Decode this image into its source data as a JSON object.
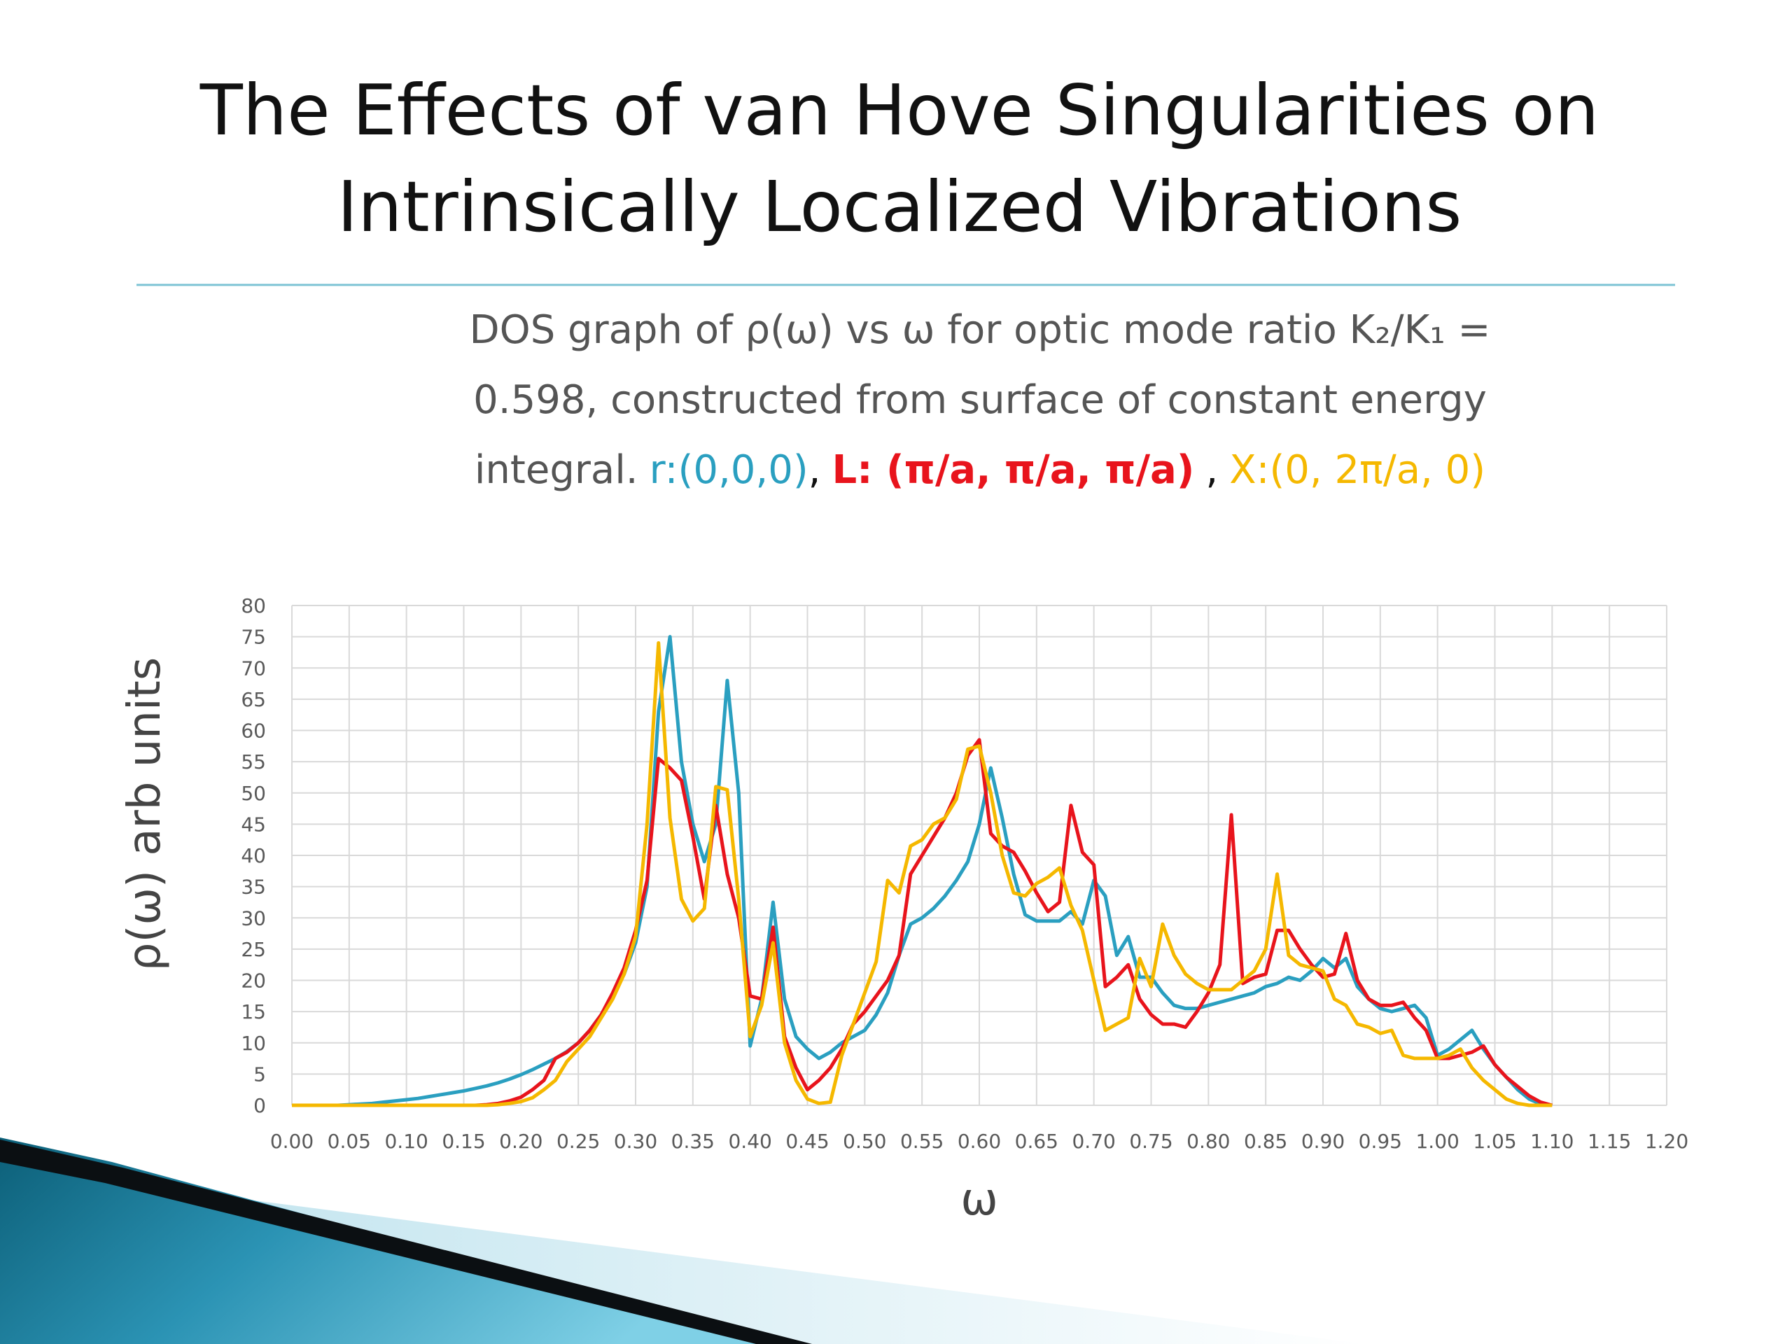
{
  "slide": {
    "title_lines": [
      "The Effects of van Hove Singularities on",
      "Intrinsically Localized Vibrations"
    ],
    "caption_lines": [
      "DOS graph of ρ(ω) vs ω for optic mode ratio K₂/K₁ =",
      "0.598, constructed from surface of constant energy",
      "integral."
    ],
    "separators": [
      ",",
      ","
    ]
  },
  "chart_data": {
    "type": "line",
    "x_label": "ω",
    "y_label": "ρ(ω) arb units",
    "x": [
      0,
      0.01,
      0.02,
      0.03,
      0.04,
      0.05,
      0.06,
      0.07,
      0.08,
      0.09,
      0.1,
      0.11,
      0.12,
      0.13,
      0.14,
      0.15,
      0.16,
      0.17,
      0.18,
      0.19,
      0.2,
      0.21,
      0.22,
      0.23,
      0.24,
      0.25,
      0.26,
      0.27,
      0.28,
      0.29,
      0.3,
      0.31,
      0.32,
      0.33,
      0.34,
      0.35,
      0.36,
      0.37,
      0.38,
      0.39,
      0.4,
      0.41,
      0.42,
      0.43,
      0.44,
      0.45,
      0.46,
      0.47,
      0.48,
      0.49,
      0.5,
      0.51,
      0.52,
      0.53,
      0.54,
      0.55,
      0.56,
      0.57,
      0.58,
      0.59,
      0.6,
      0.61,
      0.62,
      0.63,
      0.64,
      0.65,
      0.66,
      0.67,
      0.68,
      0.69,
      0.7,
      0.71,
      0.72,
      0.73,
      0.74,
      0.75,
      0.76,
      0.77,
      0.78,
      0.79,
      0.8,
      0.81,
      0.82,
      0.83,
      0.84,
      0.85,
      0.86,
      0.87,
      0.88,
      0.89,
      0.9,
      0.91,
      0.92,
      0.93,
      0.94,
      0.95,
      0.96,
      0.97,
      0.98,
      0.99,
      1,
      1.01,
      1.02,
      1.03,
      1.04,
      1.05,
      1.06,
      1.07,
      1.08,
      1.09,
      1.1
    ],
    "series": [
      {
        "name": "r:(0,0,0)",
        "color": "#2a9fc0",
        "bold": false,
        "values": [
          0,
          0,
          0,
          0,
          0,
          0.1,
          0.2,
          0.3,
          0.5,
          0.7,
          0.9,
          1.1,
          1.4,
          1.7,
          2,
          2.3,
          2.7,
          3.1,
          3.6,
          4.2,
          4.9,
          5.7,
          6.6,
          7.5,
          8.6,
          10,
          12,
          14.5,
          17.5,
          21,
          26,
          35,
          63,
          75,
          55,
          45,
          39,
          45,
          68,
          50,
          9.5,
          17,
          32.5,
          17,
          11,
          9,
          7.5,
          8.5,
          10,
          11,
          12,
          14.5,
          18,
          24,
          29,
          30,
          31.5,
          33.5,
          36,
          39,
          45,
          54,
          46,
          37,
          30.5,
          29.5,
          29.5,
          29.5,
          31,
          29,
          36,
          33.5,
          24,
          27,
          20.5,
          20.5,
          18,
          16,
          15.5,
          15.5,
          16,
          16.5,
          17,
          17.5,
          18,
          19,
          19.5,
          20.5,
          20,
          21.5,
          23.5,
          22,
          23.5,
          19,
          17,
          15.5,
          15,
          15.5,
          16,
          14,
          8,
          9,
          10.5,
          12,
          9,
          6.5,
          4.5,
          2.5,
          1,
          0.2,
          0
        ]
      },
      {
        "name": "L: (π/a, π/a, π/a)",
        "color": "#e8141c",
        "bold": true,
        "values": [
          0,
          0,
          0,
          0,
          0,
          0,
          0,
          0,
          0,
          0,
          0,
          0,
          0,
          0,
          0,
          0,
          0,
          0.1,
          0.3,
          0.7,
          1.3,
          2.5,
          4,
          7.5,
          8.5,
          10,
          12,
          14.5,
          18,
          22,
          28,
          36,
          55.5,
          54,
          52,
          43,
          33,
          48,
          37,
          30,
          17.5,
          17,
          28.5,
          11,
          6,
          2.5,
          4,
          6,
          9,
          13,
          15,
          17.5,
          20,
          24,
          37,
          40,
          43,
          46,
          50,
          56,
          58.5,
          43.5,
          41.5,
          40.5,
          37.5,
          34,
          31,
          32.5,
          48,
          40.5,
          38.5,
          19,
          20.5,
          22.5,
          17,
          14.5,
          13,
          13,
          12.5,
          15,
          18,
          22.5,
          46.5,
          19.5,
          20.5,
          21,
          28,
          28,
          25,
          22.5,
          20.5,
          21,
          27.5,
          20,
          17,
          16,
          16,
          16.5,
          14,
          12,
          7.5,
          7.5,
          8,
          8.5,
          9.5,
          6.5,
          4.5,
          3,
          1.5,
          0.5,
          0
        ]
      },
      {
        "name": "X:(0, 2π/a, 0)",
        "color": "#f5b800",
        "bold": false,
        "values": [
          0,
          0,
          0,
          0,
          0,
          0,
          0,
          0,
          0,
          0,
          0,
          0,
          0,
          0,
          0,
          0,
          0,
          0,
          0.1,
          0.3,
          0.6,
          1.2,
          2.5,
          4,
          7,
          9,
          11,
          14,
          17,
          21,
          27,
          45,
          74,
          46,
          33,
          29.5,
          31.5,
          51,
          50.5,
          33,
          11,
          16,
          26,
          10,
          4,
          1,
          0.3,
          0.5,
          8,
          13,
          18,
          23,
          36,
          34,
          41.5,
          42.5,
          45,
          46,
          49,
          57,
          57.5,
          50,
          40,
          34,
          33.5,
          35.5,
          36.5,
          38,
          32,
          28,
          20,
          12,
          13,
          14,
          23.5,
          19,
          29,
          24,
          21,
          19.5,
          18.5,
          18.5,
          18.5,
          20,
          21.5,
          25,
          37,
          24,
          22.5,
          22,
          21.5,
          17,
          16,
          13,
          12.5,
          11.5,
          12,
          8,
          7.5,
          7.5,
          7.5,
          8,
          9,
          6,
          4,
          2.5,
          1,
          0.3,
          0,
          0,
          0
        ]
      }
    ],
    "xlim": [
      0,
      1.2
    ],
    "ylim": [
      0,
      80
    ],
    "xticks": [
      {
        "value": 0,
        "label": "0.00"
      },
      {
        "value": 0.05,
        "label": "0.05"
      },
      {
        "value": 0.1,
        "label": "0.10"
      },
      {
        "value": 0.15,
        "label": "0.15"
      },
      {
        "value": 0.2,
        "label": "0.20"
      },
      {
        "value": 0.25,
        "label": "0.25"
      },
      {
        "value": 0.3,
        "label": "0.30"
      },
      {
        "value": 0.35,
        "label": "0.35"
      },
      {
        "value": 0.4,
        "label": "0.40"
      },
      {
        "value": 0.45,
        "label": "0.45"
      },
      {
        "value": 0.5,
        "label": "0.50"
      },
      {
        "value": 0.55,
        "label": "0.55"
      },
      {
        "value": 0.6,
        "label": "0.60"
      },
      {
        "value": 0.65,
        "label": "0.65"
      },
      {
        "value": 0.7,
        "label": "0.70"
      },
      {
        "value": 0.75,
        "label": "0.75"
      },
      {
        "value": 0.8,
        "label": "0.80"
      },
      {
        "value": 0.85,
        "label": "0.85"
      },
      {
        "value": 0.9,
        "label": "0.90"
      },
      {
        "value": 0.95,
        "label": "0.95"
      },
      {
        "value": 1,
        "label": "1.00"
      },
      {
        "value": 1.05,
        "label": "1.05"
      },
      {
        "value": 1.1,
        "label": "1.10"
      },
      {
        "value": 1.15,
        "label": "1.15"
      },
      {
        "value": 1.2,
        "label": "1.20"
      }
    ],
    "yticks": [
      0,
      5,
      10,
      15,
      20,
      25,
      30,
      35,
      40,
      45,
      50,
      55,
      60,
      65,
      70,
      75,
      80
    ],
    "grid": true
  }
}
